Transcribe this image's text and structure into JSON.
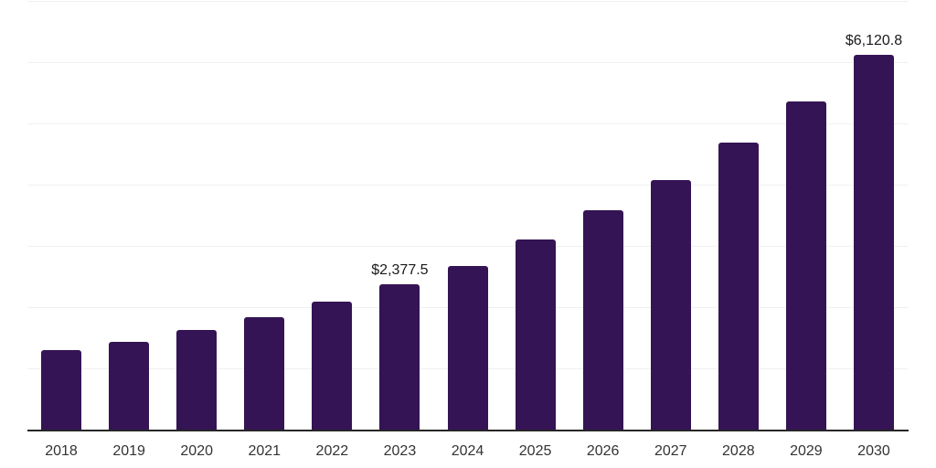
{
  "page": {
    "background": "#ffffff"
  },
  "chart_data": {
    "type": "bar",
    "title": "",
    "xlabel": "",
    "ylabel": "",
    "categories": [
      "2018",
      "2019",
      "2020",
      "2021",
      "2022",
      "2023",
      "2024",
      "2025",
      "2026",
      "2027",
      "2028",
      "2029",
      "2030"
    ],
    "values": [
      1300,
      1440,
      1625,
      1840,
      2090,
      2377.5,
      2670,
      3110,
      3580,
      4075,
      4690,
      5360,
      6120.8
    ],
    "data_labels": {
      "2023": "$2,377.5",
      "2030": "$6,120.8"
    },
    "ylim": [
      0,
      7000
    ],
    "gridline_step": 1000,
    "grid": "horizontal",
    "legend": "none",
    "colors": {
      "bar": "#341454",
      "axis_line": "#262626",
      "gridline": "#f0f0f0",
      "xtick_label": "#333333",
      "data_label": "#1a1a1a"
    }
  }
}
